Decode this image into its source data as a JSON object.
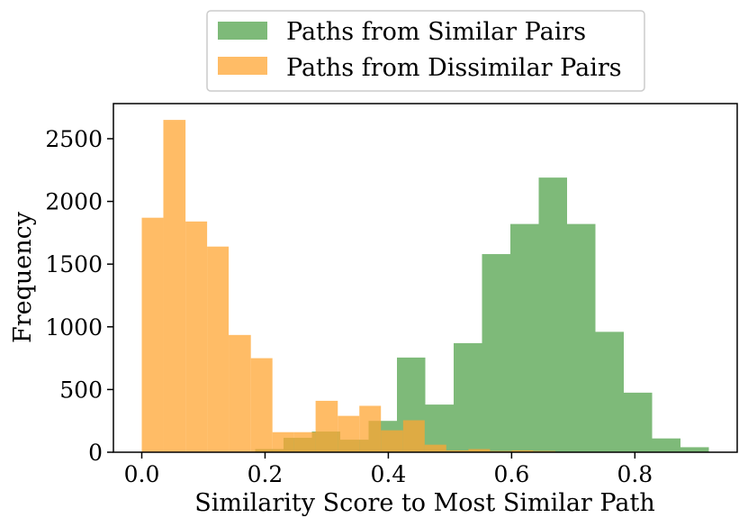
{
  "chart_data": {
    "type": "bar",
    "title": "",
    "xlabel": "Similarity Score to Most Similar Path",
    "ylabel": "Frequency",
    "xlim": [
      -0.046,
      0.966
    ],
    "ylim": [
      0,
      2780
    ],
    "xticks": [
      "0.0",
      "0.2",
      "0.4",
      "0.6",
      "0.8"
    ],
    "xtick_values": [
      0.0,
      0.2,
      0.4,
      0.6,
      0.8
    ],
    "yticks": [
      "0",
      "500",
      "1000",
      "1500",
      "2000",
      "2500"
    ],
    "ytick_values": [
      0,
      500,
      1000,
      1500,
      2000,
      2500
    ],
    "grid": false,
    "legend_placement": "above-center",
    "series": [
      {
        "name": "Paths from Similar Pairs",
        "color": "#4c9f45",
        "alpha": 0.72,
        "bins": [
          {
            "x0": 0.184,
            "x1": 0.23,
            "value": 25
          },
          {
            "x0": 0.23,
            "x1": 0.276,
            "value": 115
          },
          {
            "x0": 0.276,
            "x1": 0.322,
            "value": 165
          },
          {
            "x0": 0.322,
            "x1": 0.368,
            "value": 100
          },
          {
            "x0": 0.368,
            "x1": 0.414,
            "value": 250
          },
          {
            "x0": 0.414,
            "x1": 0.46,
            "value": 755
          },
          {
            "x0": 0.46,
            "x1": 0.506,
            "value": 380
          },
          {
            "x0": 0.506,
            "x1": 0.552,
            "value": 870
          },
          {
            "x0": 0.552,
            "x1": 0.598,
            "value": 1580
          },
          {
            "x0": 0.598,
            "x1": 0.644,
            "value": 1820
          },
          {
            "x0": 0.644,
            "x1": 0.69,
            "value": 2190
          },
          {
            "x0": 0.69,
            "x1": 0.736,
            "value": 1820
          },
          {
            "x0": 0.736,
            "x1": 0.782,
            "value": 960
          },
          {
            "x0": 0.782,
            "x1": 0.828,
            "value": 475
          },
          {
            "x0": 0.828,
            "x1": 0.874,
            "value": 110
          },
          {
            "x0": 0.874,
            "x1": 0.92,
            "value": 40
          }
        ]
      },
      {
        "name": "Paths from Dissimilar Pairs",
        "color": "#ffa533",
        "alpha": 0.75,
        "bins": [
          {
            "x0": 0.0,
            "x1": 0.035,
            "value": 1870
          },
          {
            "x0": 0.035,
            "x1": 0.071,
            "value": 2650
          },
          {
            "x0": 0.071,
            "x1": 0.106,
            "value": 1840
          },
          {
            "x0": 0.106,
            "x1": 0.141,
            "value": 1640
          },
          {
            "x0": 0.141,
            "x1": 0.177,
            "value": 935
          },
          {
            "x0": 0.177,
            "x1": 0.212,
            "value": 750
          },
          {
            "x0": 0.212,
            "x1": 0.247,
            "value": 160
          },
          {
            "x0": 0.247,
            "x1": 0.282,
            "value": 160
          },
          {
            "x0": 0.282,
            "x1": 0.318,
            "value": 410
          },
          {
            "x0": 0.318,
            "x1": 0.353,
            "value": 290
          },
          {
            "x0": 0.353,
            "x1": 0.388,
            "value": 370
          },
          {
            "x0": 0.388,
            "x1": 0.424,
            "value": 175
          },
          {
            "x0": 0.424,
            "x1": 0.459,
            "value": 255
          },
          {
            "x0": 0.459,
            "x1": 0.494,
            "value": 60
          },
          {
            "x0": 0.494,
            "x1": 0.53,
            "value": 15
          },
          {
            "x0": 0.53,
            "x1": 0.565,
            "value": 25
          },
          {
            "x0": 0.565,
            "x1": 0.6,
            "value": 10
          },
          {
            "x0": 0.6,
            "x1": 0.635,
            "value": 15
          },
          {
            "x0": 0.635,
            "x1": 0.671,
            "value": 10
          }
        ]
      }
    ]
  }
}
